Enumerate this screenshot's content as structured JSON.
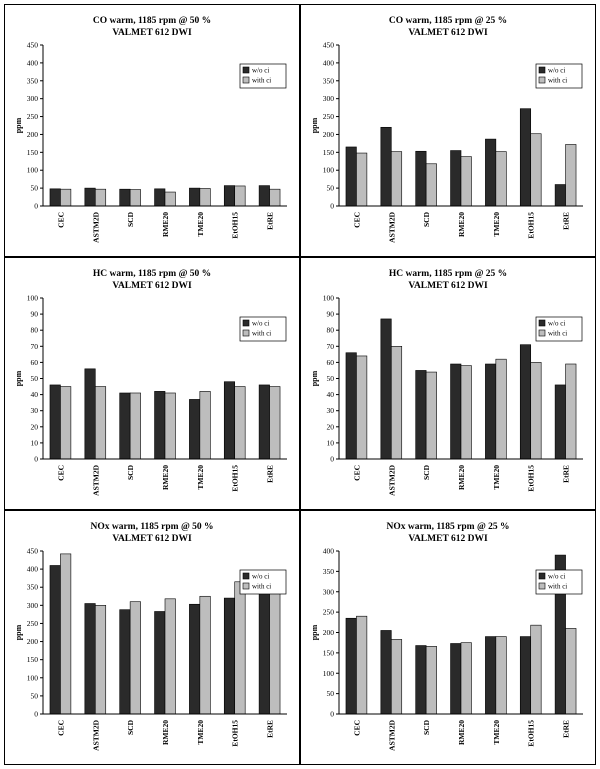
{
  "colors": {
    "wo_ci": "#2a2a2a",
    "with_ci": "#bdbdbd",
    "border": "#000000"
  },
  "legend": [
    "w/o ci",
    "with ci"
  ],
  "chart_data": [
    {
      "type": "bar",
      "title": "CO warm, 1185 rpm @ 50 %",
      "subtitle": "VALMET 612 DWI",
      "ylabel": "ppm",
      "categories": [
        "CEC",
        "ASTM2D",
        "SCD",
        "RME20",
        "TME20",
        "EtOH15",
        "EtRE"
      ],
      "ylim": [
        0,
        450
      ],
      "yticks": [
        0,
        50,
        100,
        150,
        200,
        250,
        300,
        350,
        400,
        450
      ],
      "series": [
        {
          "name": "w/o ci",
          "values": [
            48,
            50,
            47,
            48,
            50,
            57,
            57
          ]
        },
        {
          "name": "with ci",
          "values": [
            47,
            47,
            46,
            39,
            49,
            56,
            47
          ]
        }
      ],
      "legend_position": "top-right"
    },
    {
      "type": "bar",
      "title": "CO warm, 1185 rpm @ 25 %",
      "subtitle": "VALMET 612 DWI",
      "ylabel": "ppm",
      "categories": [
        "CEC",
        "ASTM2D",
        "SCD",
        "RME20",
        "TME20",
        "EtOH15",
        "EtRE"
      ],
      "ylim": [
        0,
        450
      ],
      "yticks": [
        0,
        50,
        100,
        150,
        200,
        250,
        300,
        350,
        400,
        450
      ],
      "series": [
        {
          "name": "w/o ci",
          "values": [
            165,
            220,
            153,
            155,
            187,
            272,
            60
          ]
        },
        {
          "name": "with ci",
          "values": [
            148,
            152,
            118,
            138,
            152,
            202,
            172
          ]
        }
      ],
      "legend_position": "top-right"
    },
    {
      "type": "bar",
      "title": "HC warm, 1185 rpm @ 50 %",
      "subtitle": "VALMET 612 DWI",
      "ylabel": "ppm",
      "categories": [
        "CEC",
        "ASTM2D",
        "SCD",
        "RME20",
        "TME20",
        "EtOH15",
        "EtRE"
      ],
      "ylim": [
        0,
        100
      ],
      "yticks": [
        0,
        10,
        20,
        30,
        40,
        50,
        60,
        70,
        80,
        90,
        100
      ],
      "series": [
        {
          "name": "w/o ci",
          "values": [
            46,
            56,
            41,
            42,
            37,
            48,
            46
          ]
        },
        {
          "name": "with ci",
          "values": [
            45,
            45,
            41,
            41,
            42,
            45,
            45
          ]
        }
      ],
      "legend_position": "top-right"
    },
    {
      "type": "bar",
      "title": "HC warm, 1185 rpm @ 25 %",
      "subtitle": "VALMET 612 DWI",
      "ylabel": "ppm",
      "categories": [
        "CEC",
        "ASTM2D",
        "SCD",
        "RME20",
        "TME20",
        "EtOH15",
        "EtRE"
      ],
      "ylim": [
        0,
        100
      ],
      "yticks": [
        0,
        10,
        20,
        30,
        40,
        50,
        60,
        70,
        80,
        90,
        100
      ],
      "series": [
        {
          "name": "w/o ci",
          "values": [
            66,
            87,
            55,
            59,
            59,
            71,
            46
          ]
        },
        {
          "name": "with ci",
          "values": [
            64,
            70,
            54,
            58,
            62,
            60,
            59
          ]
        }
      ],
      "legend_position": "top-right"
    },
    {
      "type": "bar",
      "title": "NOx warm, 1185 rpm @ 50 %",
      "subtitle": "VALMET 612 DWI",
      "ylabel": "ppm",
      "categories": [
        "CEC",
        "ASTM2D",
        "SCD",
        "RME20",
        "TME20",
        "EtOH15",
        "EtRE"
      ],
      "ylim": [
        0,
        450
      ],
      "yticks": [
        0,
        50,
        100,
        150,
        200,
        250,
        300,
        350,
        400,
        450
      ],
      "series": [
        {
          "name": "w/o ci",
          "values": [
            410,
            305,
            288,
            283,
            303,
            320,
            388
          ]
        },
        {
          "name": "with ci",
          "values": [
            442,
            300,
            310,
            318,
            325,
            365,
            368
          ]
        }
      ],
      "legend_position": "top-right"
    },
    {
      "type": "bar",
      "title": "NOx warm, 1185 rpm @ 25 %",
      "subtitle": "VALMET 612 DWI",
      "ylabel": "ppm",
      "categories": [
        "CEC",
        "ASTM2D",
        "SCD",
        "RME20",
        "TME20",
        "EtOH15",
        "EtRE"
      ],
      "ylim": [
        0,
        400
      ],
      "yticks": [
        0,
        50,
        100,
        150,
        200,
        250,
        300,
        350,
        400
      ],
      "series": [
        {
          "name": "w/o ci",
          "values": [
            235,
            205,
            168,
            173,
            190,
            190,
            390
          ]
        },
        {
          "name": "with ci",
          "values": [
            240,
            183,
            166,
            175,
            190,
            218,
            210
          ]
        }
      ],
      "legend_position": "top-right"
    }
  ]
}
